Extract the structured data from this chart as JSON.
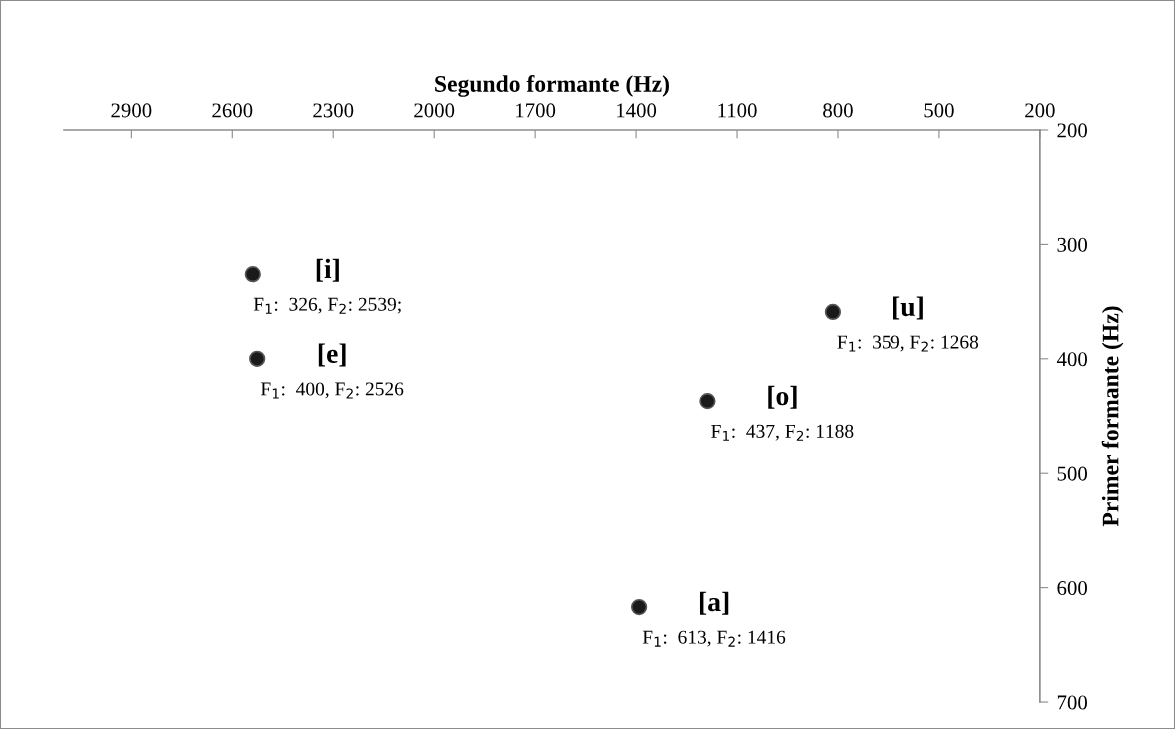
{
  "chart_data": {
    "type": "scatter",
    "xlabel": "Segundo formante (Hz)",
    "ylabel": "Primer formante (Hz)",
    "x": [
      2539,
      2526,
      1188,
      815,
      1391
    ],
    "series": [
      {
        "color": "#1a1a1a",
        "values": [
          326,
          400,
          437,
          359,
          617
        ]
      }
    ],
    "xlim": [
      3100,
      200
    ],
    "xticks": [
      2900,
      2600,
      2300,
      2000,
      1700,
      1400,
      1100,
      800,
      500,
      200
    ],
    "ylim": [
      700,
      200
    ],
    "yticks": [
      200,
      300,
      400,
      500,
      600,
      700
    ],
    "marker": "circle",
    "grid": false,
    "legend": false,
    "annotations": [
      {
        "text": "[i]",
        "x": 2539,
        "y": 326
      },
      {
        "text": "F$_{1}$:  326, F$_{2}$: 2539;",
        "x": 2539,
        "y": 326
      },
      {
        "text": "[e]",
        "x": 2526,
        "y": 400
      },
      {
        "text": "F$_{1}$:  400, F$_{2}$: 2526",
        "x": 2526,
        "y": 400
      },
      {
        "text": "[o]",
        "x": 1188,
        "y": 437
      },
      {
        "text": "F$_{1}$:  437, F$_{2}$: 1188",
        "x": 1188,
        "y": 437
      },
      {
        "text": "[u]",
        "x": 815,
        "y": 359
      },
      {
        "text": "F$_{1}$:  359, F$_{2}$: 1268",
        "x": 815,
        "y": 359
      },
      {
        "text": "[a]",
        "x": 1391,
        "y": 617
      },
      {
        "text": "F$_{1}$:  613, F$_{2}$: 1416",
        "x": 1391,
        "y": 617
      }
    ]
  }
}
